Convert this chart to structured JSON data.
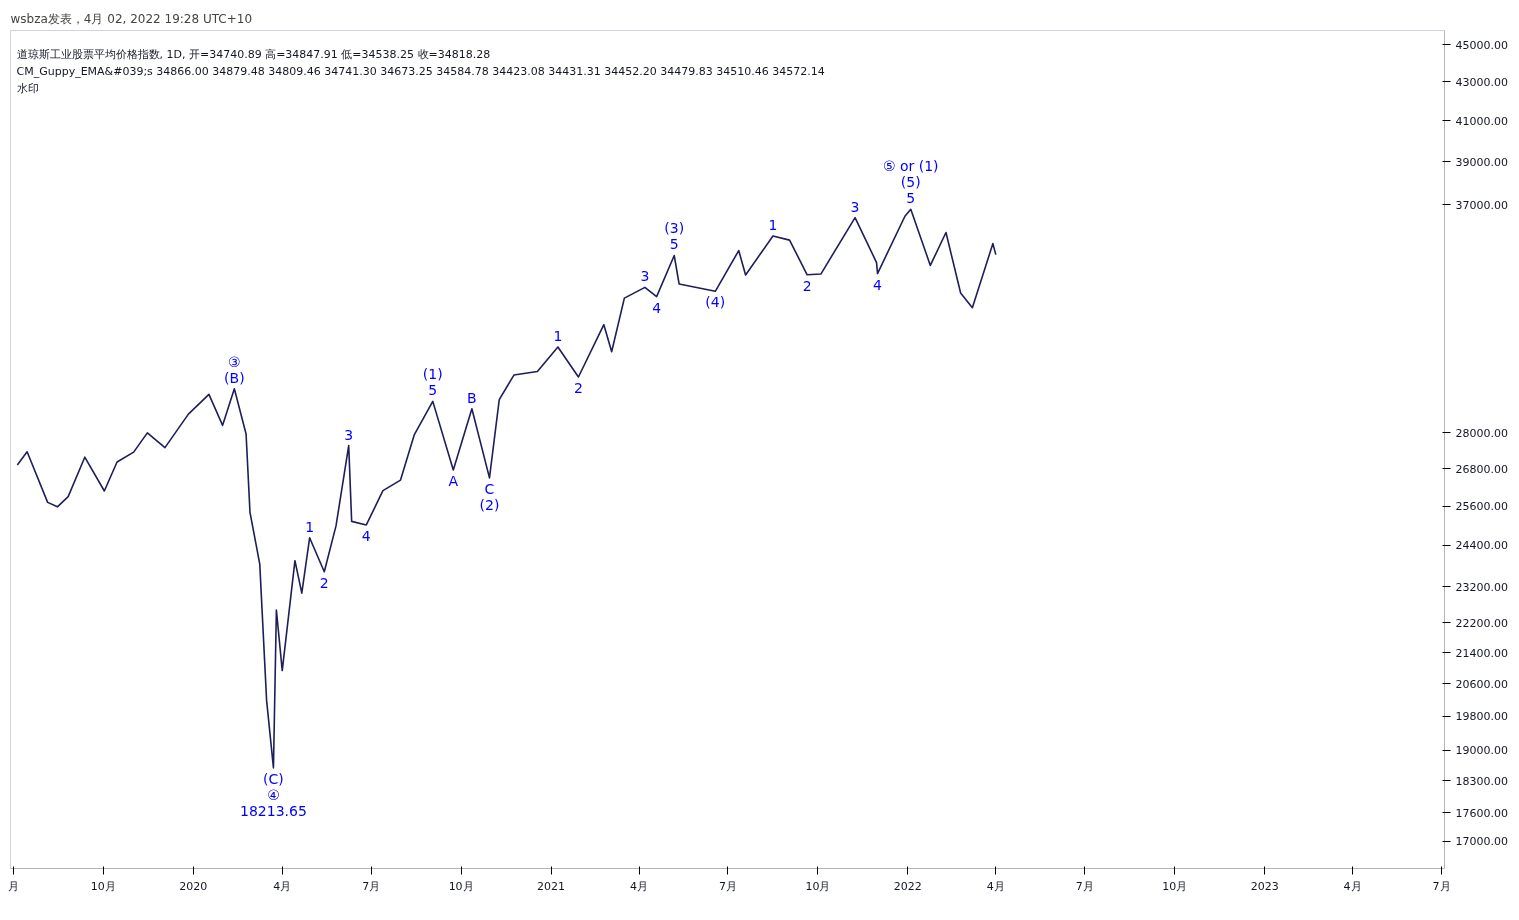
{
  "chart_data": {
    "type": "line",
    "title": "wsbza发表，4月 02, 2022 19:28 UTC+10",
    "annotations": [
      "道琼斯工业股票平均价格指数, 1D, 开=34740.89 高=34847.91 低=34538.25 收=34818.28",
      "CM_Guppy_EMA&#039;s 34866.00 34879.48 34809.46 34741.30 34673.25 34584.78 34423.08 34431.31 34452.20 34479.83 34510.46 34572.14",
      "水印",
      {
        "text": "(B)",
        "x": "2020-02-12",
        "y": 29550
      },
      {
        "text": "③",
        "x": "2020-02-12",
        "y": 29550
      },
      {
        "text": "(C)",
        "x": "2020-03-23",
        "y": 18590
      },
      {
        "text": "④",
        "x": "2020-03-23",
        "y": 18590
      },
      {
        "text": "18213.65",
        "x": "2020-03-23",
        "y": 18590
      },
      {
        "text": "1",
        "x": "2020-04-29",
        "y": 24630
      },
      {
        "text": "2",
        "x": "2020-05-14",
        "y": 23630
      },
      {
        "text": "3",
        "x": "2020-06-08",
        "y": 27570
      },
      {
        "text": "4",
        "x": "2020-06-26",
        "y": 25020
      },
      {
        "text": "5",
        "x": "2020-09-02",
        "y": 29100
      },
      {
        "text": "(1)",
        "x": "2020-09-02",
        "y": 29100
      },
      {
        "text": "A",
        "x": "2020-09-23",
        "y": 26760
      },
      {
        "text": "B",
        "x": "2020-10-12",
        "y": 28840
      },
      {
        "text": "C",
        "x": "2020-10-30",
        "y": 26500
      },
      {
        "text": "(2)",
        "x": "2020-10-30",
        "y": 26500
      },
      {
        "text": "1",
        "x": "2021-01-08",
        "y": 31100
      },
      {
        "text": "2",
        "x": "2021-01-29",
        "y": 29980
      },
      {
        "text": "3",
        "x": "2021-04-07",
        "y": 33450
      },
      {
        "text": "4",
        "x": "2021-04-19",
        "y": 33077
      },
      {
        "text": "5",
        "x": "2021-05-07",
        "y": 34780
      },
      {
        "text": "(3)",
        "x": "2021-05-07",
        "y": 34780
      },
      {
        "text": "(4)",
        "x": "2021-06-18",
        "y": 33290
      },
      {
        "text": "1",
        "x": "2021-08-16",
        "y": 35620
      },
      {
        "text": "2",
        "x": "2021-09-20",
        "y": 33970
      },
      {
        "text": "3",
        "x": "2021-11-08",
        "y": 36430
      },
      {
        "text": "4",
        "x": "2021-12-01",
        "y": 34020
      },
      {
        "text": "5",
        "x": "2022-01-04",
        "y": 36800
      },
      {
        "text": "(5)",
        "x": "2022-01-04",
        "y": 36800
      },
      {
        "text": "⑤ or (1)",
        "x": "2022-01-04",
        "y": 36800
      }
    ],
    "x": [
      "2019-07-05",
      "2019-07-15",
      "2019-08-05",
      "2019-08-15",
      "2019-08-26",
      "2019-09-12",
      "2019-10-02",
      "2019-10-15",
      "2019-11-01",
      "2019-11-15",
      "2019-12-03",
      "2019-12-27",
      "2020-01-17",
      "2020-01-31",
      "2020-02-12",
      "2020-02-24",
      "2020-02-28",
      "2020-03-09",
      "2020-03-16",
      "2020-03-23",
      "2020-03-26",
      "2020-04-01",
      "2020-04-14",
      "2020-04-21",
      "2020-04-29",
      "2020-05-14",
      "2020-05-26",
      "2020-06-08",
      "2020-06-11",
      "2020-06-26",
      "2020-07-13",
      "2020-07-31",
      "2020-08-14",
      "2020-09-02",
      "2020-09-23",
      "2020-10-12",
      "2020-10-30",
      "2020-11-09",
      "2020-11-24",
      "2020-12-18",
      "2021-01-08",
      "2021-01-29",
      "2021-02-24",
      "2021-03-04",
      "2021-03-17",
      "2021-04-07",
      "2021-04-19",
      "2021-05-07",
      "2021-05-12",
      "2021-06-18",
      "2021-07-12",
      "2021-07-19",
      "2021-08-16",
      "2021-09-02",
      "2021-09-20",
      "2021-10-04",
      "2021-11-08",
      "2021-11-30",
      "2021-12-01",
      "2021-12-29",
      "2022-01-04",
      "2022-01-24",
      "2022-02-09",
      "2022-02-24",
      "2022-03-08",
      "2022-03-29",
      "2022-04-01"
    ],
    "series": [
      {
        "color": "#1e1e5a",
        "values": [
          26920,
          27360,
          25720,
          25580,
          25900,
          27180,
          26080,
          27020,
          27350,
          28000,
          27500,
          28650,
          29350,
          28260,
          29550,
          27960,
          25410,
          23850,
          20190,
          18590,
          22550,
          20940,
          23950,
          23020,
          24630,
          23630,
          24990,
          27570,
          25130,
          25020,
          26090,
          26430,
          27930,
          29100,
          26760,
          28840,
          26500,
          29160,
          30050,
          30180,
          31100,
          29980,
          31960,
          30920,
          33015,
          33450,
          33077,
          34780,
          33590,
          33290,
          34990,
          33960,
          35620,
          35440,
          33970,
          34000,
          36430,
          34480,
          34020,
          36490,
          36800,
          34360,
          35770,
          33220,
          32630,
          35290,
          34818.28
        ]
      }
    ],
    "log": "y",
    "grid": false,
    "line_style": "solid",
    "ylim": [
      16440,
      45790
    ],
    "yticks": [
      {
        "value": 45000,
        "label": "45000.00"
      },
      {
        "value": 43000,
        "label": "43000.00"
      },
      {
        "value": 41000,
        "label": "41000.00"
      },
      {
        "value": 39000,
        "label": "39000.00"
      },
      {
        "value": 37000,
        "label": "37000.00"
      },
      {
        "value": 28000,
        "label": "28000.00"
      },
      {
        "value": 26800,
        "label": "26800.00"
      },
      {
        "value": 25600,
        "label": "25600.00"
      },
      {
        "value": 24400,
        "label": "24400.00"
      },
      {
        "value": 23200,
        "label": "23200.00"
      },
      {
        "value": 22200,
        "label": "22200.00"
      },
      {
        "value": 21400,
        "label": "21400.00"
      },
      {
        "value": 20600,
        "label": "20600.00"
      },
      {
        "value": 19800,
        "label": "19800.00"
      },
      {
        "value": 19000,
        "label": "19000.00"
      },
      {
        "value": 18300,
        "label": "18300.00"
      },
      {
        "value": 17600,
        "label": "17600.00"
      },
      {
        "value": 17000,
        "label": "17000.00"
      }
    ],
    "xlim": [
      "2019-06-28",
      "2023-07-04"
    ],
    "xticks": [
      {
        "value": "2019-07-01",
        "label": "月"
      },
      {
        "value": "2019-10-01",
        "label": "10月"
      },
      {
        "value": "2020-01-01",
        "label": "2020"
      },
      {
        "value": "2020-04-01",
        "label": "4月"
      },
      {
        "value": "2020-07-01",
        "label": "7月"
      },
      {
        "value": "2020-10-01",
        "label": "10月"
      },
      {
        "value": "2021-01-01",
        "label": "2021"
      },
      {
        "value": "2021-04-01",
        "label": "4月"
      },
      {
        "value": "2021-07-01",
        "label": "7月"
      },
      {
        "value": "2021-10-01",
        "label": "10月"
      },
      {
        "value": "2022-01-01",
        "label": "2022"
      },
      {
        "value": "2022-04-01",
        "label": "4月"
      },
      {
        "value": "2022-07-01",
        "label": "7月"
      },
      {
        "value": "2022-10-01",
        "label": "10月"
      },
      {
        "value": "2023-01-01",
        "label": "2023"
      },
      {
        "value": "2023-04-01",
        "label": "4月"
      },
      {
        "value": "2023-07-01",
        "label": "7月"
      }
    ]
  }
}
